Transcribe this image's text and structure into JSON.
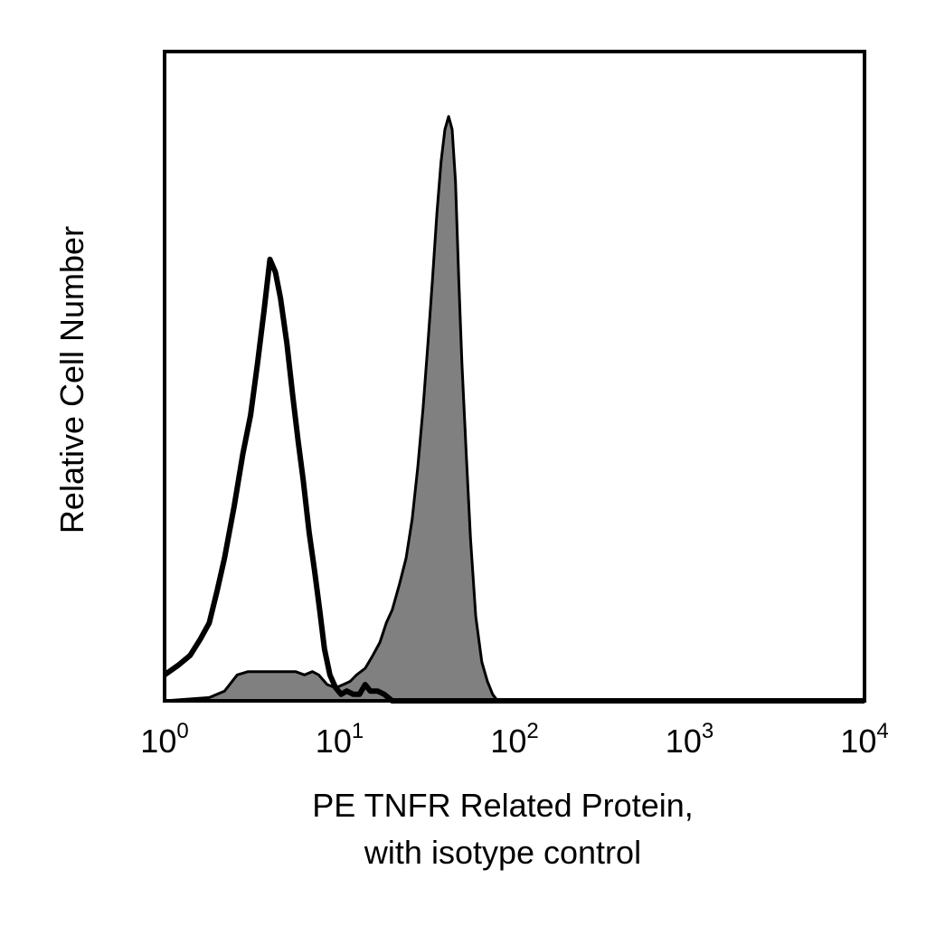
{
  "chart_data": {
    "type": "area",
    "title": "",
    "xlabel_lines": [
      "PE TNFR Related Protein,",
      "with isotype control"
    ],
    "ylabel": "Relative Cell Number",
    "xscale": "log",
    "xlim": [
      1,
      10000
    ],
    "ylim": [
      0,
      100
    ],
    "x_ticks": [
      {
        "value": 1,
        "base": "10",
        "exp": "0"
      },
      {
        "value": 10,
        "base": "10",
        "exp": "1"
      },
      {
        "value": 100,
        "base": "10",
        "exp": "2"
      },
      {
        "value": 1000,
        "base": "10",
        "exp": "3"
      },
      {
        "value": 10000,
        "base": "10",
        "exp": "4"
      }
    ],
    "grid": false,
    "legend": "none",
    "series": [
      {
        "style": "filled",
        "color": "#808080",
        "stroke": "#000000",
        "x": [
          1,
          1.8,
          2.2,
          2.6,
          3.0,
          3.5,
          4.0,
          4.5,
          5.0,
          5.6,
          6.3,
          7.0,
          7.6,
          8.5,
          9.5,
          10.5,
          11.5,
          12.5,
          14,
          15.5,
          17,
          18.5,
          20,
          22,
          24,
          26,
          28,
          30,
          32,
          34,
          36,
          38,
          40,
          42,
          44,
          46,
          48,
          50,
          53,
          56,
          60,
          65,
          70,
          75,
          80,
          100,
          10000
        ],
        "y": [
          0,
          0.5,
          1.5,
          4,
          4.5,
          4.5,
          4.5,
          4.5,
          4.5,
          4.5,
          4,
          4.5,
          4,
          2.5,
          2,
          2.5,
          3,
          4,
          5,
          7,
          9,
          12,
          14,
          18,
          22,
          28,
          36,
          45,
          55,
          65,
          75,
          83,
          88,
          90,
          88,
          80,
          65,
          52,
          38,
          25,
          13,
          6,
          3,
          1,
          0,
          0,
          0
        ]
      },
      {
        "style": "outline",
        "color": "none",
        "stroke": "#000000",
        "x": [
          1,
          1.2,
          1.4,
          1.6,
          1.8,
          2.0,
          2.2,
          2.5,
          2.8,
          3.1,
          3.4,
          3.7,
          4.0,
          4.3,
          4.6,
          5.0,
          5.4,
          5.8,
          6.2,
          6.7,
          7.2,
          7.7,
          8.2,
          8.8,
          9.5,
          10.2,
          11,
          12,
          13,
          14,
          15,
          16.5,
          18,
          20,
          100,
          10000
        ],
        "y": [
          4,
          5.5,
          7,
          9.5,
          12,
          17,
          22,
          30,
          38,
          44,
          52,
          60,
          68,
          66,
          62,
          55,
          47,
          40,
          34,
          26,
          20,
          14,
          8,
          4,
          2,
          1,
          1.5,
          1,
          1,
          2.5,
          1.5,
          1.5,
          1,
          0,
          0,
          0
        ]
      }
    ]
  }
}
